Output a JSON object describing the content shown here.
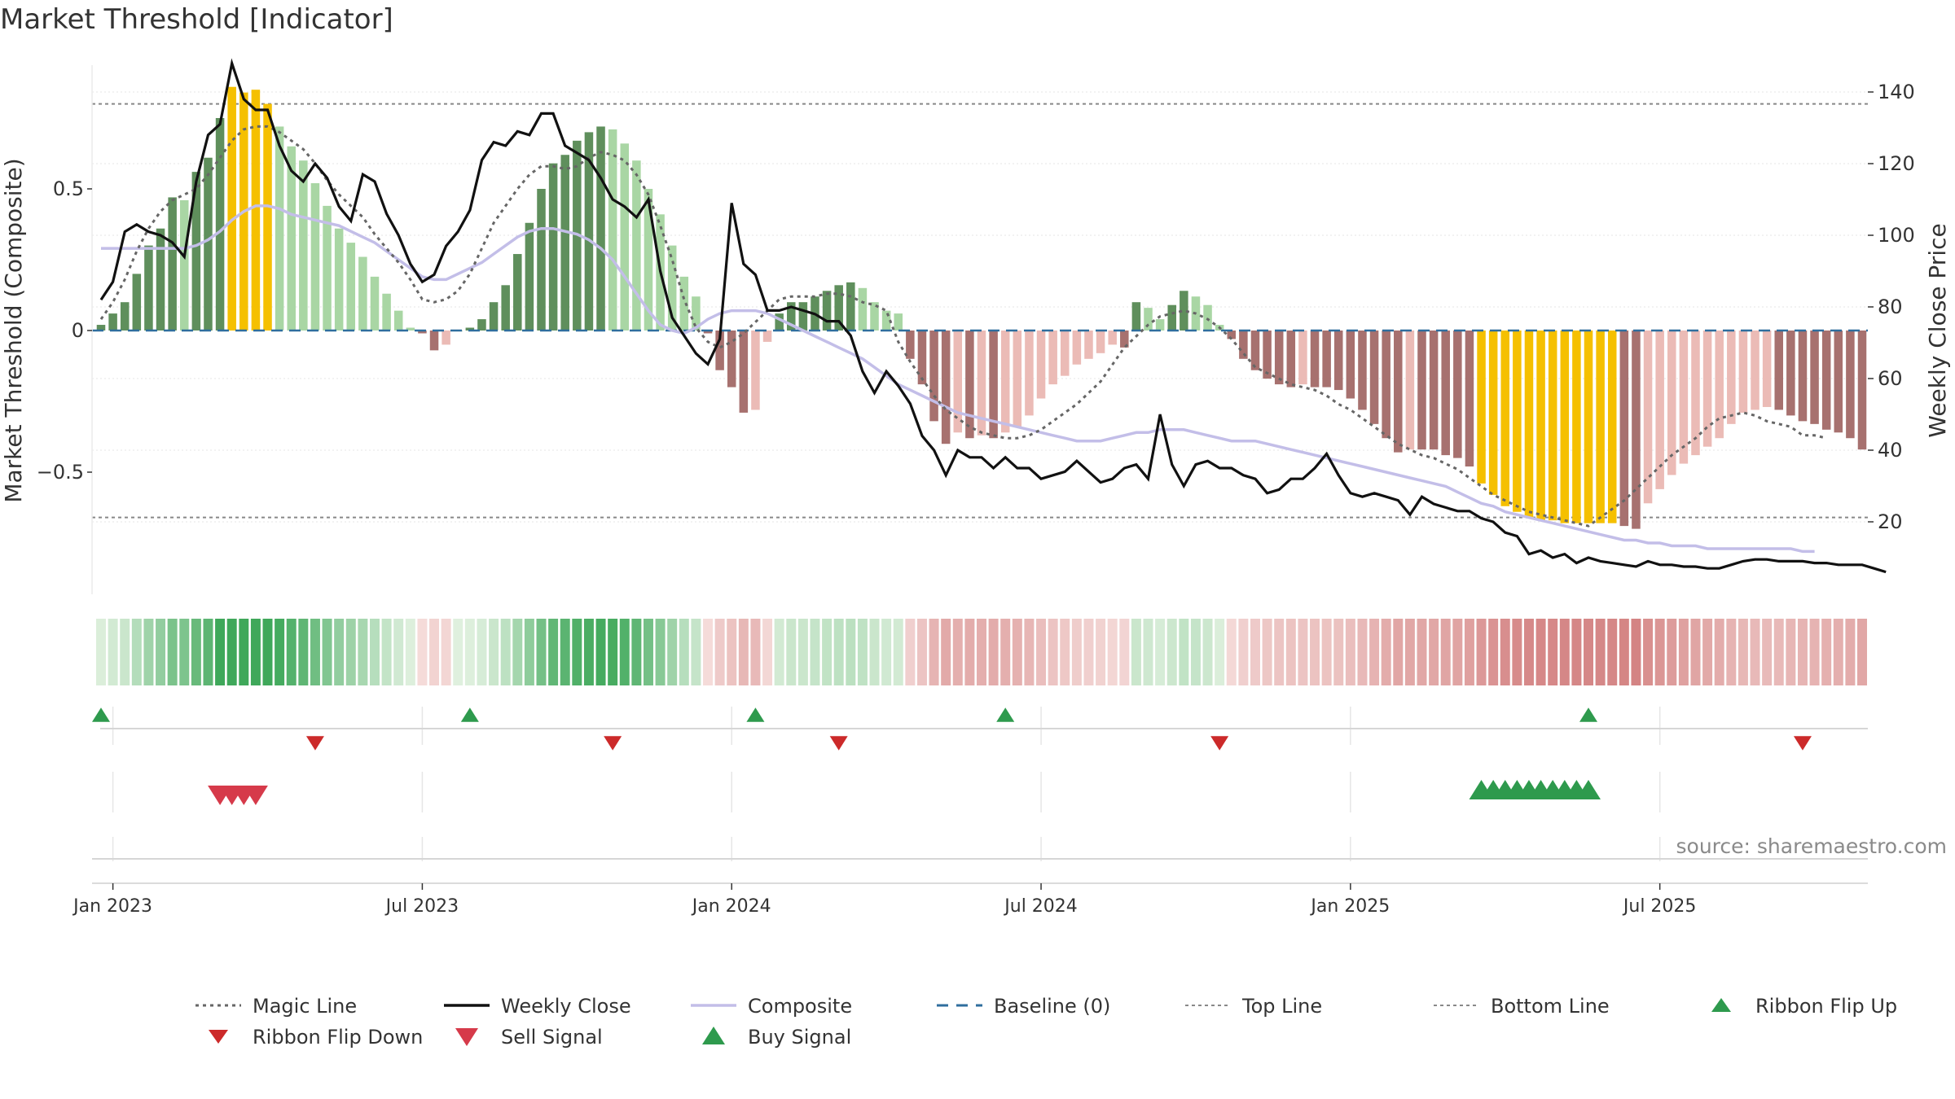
{
  "title": "Market Threshold [Indicator]",
  "source": "source: sharemaestro.com",
  "colors": {
    "dark_green": "#5f8f5c",
    "light_green": "#a9d6a4",
    "dark_red": "#a7716f",
    "light_red": "#ebbbb6",
    "gold": "#f5c000",
    "close": "#111111",
    "composite": "#c3bee8",
    "magic": "#666666",
    "baseline": "#2f6e9e",
    "threshold": "#888888",
    "buy": "#2e9a4d",
    "sell": "#d63a4a",
    "flip_down": "#cc2a2a"
  },
  "chart_data": {
    "type": "bar+line",
    "title": "Market Threshold [Indicator]",
    "ylabel_left": "Market Threshold (Composite)",
    "ylabel_right": "Weekly Close Price",
    "y_left_ticks": [
      {
        "value": 0.5,
        "label": "0.5"
      },
      {
        "value": 0,
        "label": "0"
      },
      {
        "value": -0.5,
        "label": "−0.5"
      }
    ],
    "y_right_ticks": [
      {
        "value": 140,
        "label": "140"
      },
      {
        "value": 120,
        "label": "120"
      },
      {
        "value": 100,
        "label": "100"
      },
      {
        "value": 80,
        "label": "80"
      },
      {
        "value": 60,
        "label": "60"
      },
      {
        "value": 40,
        "label": "40"
      },
      {
        "value": 20,
        "label": "20"
      }
    ],
    "x_ticks": [
      {
        "week": 1,
        "label": "Jan 2023"
      },
      {
        "week": 27,
        "label": "Jul 2023"
      },
      {
        "week": 53,
        "label": "Jan 2024"
      },
      {
        "week": 79,
        "label": "Jul 2024"
      },
      {
        "week": 105,
        "label": "Jan 2025"
      },
      {
        "week": 131,
        "label": "Jul 2025"
      }
    ],
    "top_line": 0.8,
    "bottom_line": -0.66,
    "composite_bars": [
      0.02,
      0.06,
      0.1,
      0.2,
      0.3,
      0.36,
      0.47,
      0.46,
      0.56,
      0.61,
      0.75,
      0.86,
      0.84,
      0.85,
      0.8,
      0.72,
      0.65,
      0.6,
      0.52,
      0.44,
      0.36,
      0.31,
      0.26,
      0.19,
      0.13,
      0.07,
      0.01,
      -0.01,
      -0.07,
      -0.05,
      0,
      0.01,
      0.04,
      0.1,
      0.16,
      0.27,
      0.38,
      0.5,
      0.59,
      0.62,
      0.67,
      0.7,
      0.72,
      0.71,
      0.66,
      0.6,
      0.5,
      0.41,
      0.3,
      0.19,
      0.12,
      -0.01,
      -0.14,
      -0.2,
      -0.29,
      -0.28,
      -0.04,
      0.06,
      0.1,
      0.1,
      0.12,
      0.14,
      0.16,
      0.17,
      0.15,
      0.1,
      0.07,
      0.06,
      -0.1,
      -0.19,
      -0.32,
      -0.4,
      -0.36,
      -0.38,
      -0.37,
      -0.38,
      -0.36,
      -0.34,
      -0.3,
      -0.24,
      -0.19,
      -0.16,
      -0.12,
      -0.1,
      -0.08,
      -0.05,
      -0.06,
      0.1,
      0.08,
      0.04,
      0.09,
      0.14,
      0.12,
      0.09,
      0.02,
      -0.03,
      -0.1,
      -0.14,
      -0.17,
      -0.19,
      -0.2,
      -0.19,
      -0.2,
      -0.2,
      -0.21,
      -0.24,
      -0.28,
      -0.33,
      -0.38,
      -0.43,
      -0.42,
      -0.42,
      -0.42,
      -0.44,
      -0.45,
      -0.48,
      -0.54,
      -0.58,
      -0.62,
      -0.64,
      -0.66,
      -0.67,
      -0.67,
      -0.68,
      -0.68,
      -0.68,
      -0.68,
      -0.68,
      -0.69,
      -0.7,
      -0.61,
      -0.56,
      -0.51,
      -0.47,
      -0.44,
      -0.41,
      -0.38,
      -0.33,
      -0.29,
      -0.28,
      -0.27,
      -0.28,
      -0.3,
      -0.32,
      -0.33,
      -0.35,
      -0.36,
      -0.38,
      -0.42
    ],
    "gold_bars": [
      11,
      12,
      13,
      14,
      116,
      117,
      118,
      119,
      120,
      121,
      122,
      123,
      124,
      125,
      126,
      127
    ],
    "weekly_close": [
      82,
      87,
      101,
      103,
      101,
      100,
      98,
      94,
      115,
      128,
      131,
      148,
      138,
      135,
      135,
      125,
      118,
      115,
      120,
      116,
      108,
      104,
      117,
      115,
      106,
      100,
      92,
      87,
      89,
      97,
      101,
      107,
      121,
      126,
      125,
      129,
      128,
      134,
      134,
      125,
      123,
      121,
      116,
      110,
      108,
      105,
      110,
      90,
      77,
      72,
      67,
      64,
      71,
      109,
      92,
      89,
      79,
      79,
      80,
      79,
      78,
      76,
      76,
      72,
      62,
      56,
      62,
      58,
      53,
      44,
      40,
      33,
      40,
      38,
      38,
      35,
      38,
      35,
      35,
      32,
      33,
      34,
      37,
      34,
      31,
      32,
      35,
      36,
      32,
      50,
      36,
      30,
      36,
      37,
      35,
      35,
      33,
      32,
      28,
      29,
      32,
      32,
      35,
      39,
      33,
      28,
      27,
      28,
      27,
      26,
      22,
      27,
      25,
      24,
      23,
      23,
      21,
      20,
      17,
      16,
      11,
      12,
      10,
      11,
      8.5,
      10,
      9,
      8.5,
      8,
      7.5,
      9,
      8,
      8,
      7.5,
      7.5,
      7,
      7,
      8,
      9,
      9.5,
      9.5,
      9,
      9,
      9,
      8.5,
      8.5,
      8,
      8,
      8,
      7,
      6
    ],
    "composite_line": [
      0.29,
      0.29,
      0.29,
      0.29,
      0.29,
      0.29,
      0.29,
      0.29,
      0.3,
      0.32,
      0.35,
      0.39,
      0.42,
      0.44,
      0.44,
      0.43,
      0.41,
      0.4,
      0.39,
      0.38,
      0.37,
      0.35,
      0.33,
      0.31,
      0.28,
      0.25,
      0.22,
      0.19,
      0.18,
      0.18,
      0.2,
      0.22,
      0.24,
      0.27,
      0.3,
      0.33,
      0.35,
      0.36,
      0.36,
      0.35,
      0.34,
      0.32,
      0.29,
      0.25,
      0.19,
      0.13,
      0.07,
      0.02,
      0,
      -0.01,
      0.01,
      0.04,
      0.06,
      0.07,
      0.07,
      0.07,
      0.06,
      0.04,
      0.02,
      0,
      -0.02,
      -0.04,
      -0.06,
      -0.08,
      -0.1,
      -0.13,
      -0.16,
      -0.19,
      -0.21,
      -0.23,
      -0.25,
      -0.27,
      -0.29,
      -0.3,
      -0.31,
      -0.32,
      -0.33,
      -0.34,
      -0.35,
      -0.36,
      -0.37,
      -0.38,
      -0.39,
      -0.39,
      -0.39,
      -0.38,
      -0.37,
      -0.36,
      -0.36,
      -0.35,
      -0.35,
      -0.35,
      -0.36,
      -0.37,
      -0.38,
      -0.39,
      -0.39,
      -0.39,
      -0.4,
      -0.41,
      -0.42,
      -0.43,
      -0.44,
      -0.45,
      -0.46,
      -0.47,
      -0.48,
      -0.49,
      -0.5,
      -0.51,
      -0.52,
      -0.53,
      -0.54,
      -0.55,
      -0.57,
      -0.59,
      -0.61,
      -0.62,
      -0.64,
      -0.65,
      -0.66,
      -0.67,
      -0.68,
      -0.69,
      -0.7,
      -0.71,
      -0.72,
      -0.73,
      -0.74,
      -0.74,
      -0.75,
      -0.75,
      -0.76,
      -0.76,
      -0.76,
      -0.77,
      -0.77,
      -0.77,
      -0.77,
      -0.77,
      -0.77,
      -0.77,
      -0.77,
      -0.78,
      -0.78
    ],
    "magic_line": [
      0.04,
      0.1,
      0.18,
      0.28,
      0.36,
      0.42,
      0.46,
      0.48,
      0.5,
      0.55,
      0.61,
      0.67,
      0.71,
      0.72,
      0.72,
      0.7,
      0.67,
      0.64,
      0.59,
      0.53,
      0.48,
      0.44,
      0.4,
      0.34,
      0.29,
      0.24,
      0.18,
      0.11,
      0.1,
      0.11,
      0.14,
      0.2,
      0.29,
      0.38,
      0.44,
      0.5,
      0.55,
      0.58,
      0.58,
      0.57,
      0.58,
      0.61,
      0.63,
      0.62,
      0.6,
      0.55,
      0.48,
      0.37,
      0.25,
      0.11,
      0.01,
      -0.04,
      -0.06,
      -0.04,
      -0.01,
      0.03,
      0.07,
      0.11,
      0.12,
      0.12,
      0.12,
      0.13,
      0.13,
      0.12,
      0.1,
      0.09,
      0.07,
      -0.04,
      -0.11,
      -0.17,
      -0.23,
      -0.28,
      -0.31,
      -0.34,
      -0.36,
      -0.37,
      -0.38,
      -0.38,
      -0.37,
      -0.35,
      -0.32,
      -0.29,
      -0.26,
      -0.22,
      -0.18,
      -0.12,
      -0.06,
      -0.02,
      0.02,
      0.05,
      0.06,
      0.07,
      0.06,
      0.04,
      0.01,
      -0.03,
      -0.08,
      -0.13,
      -0.15,
      -0.17,
      -0.19,
      -0.2,
      -0.21,
      -0.23,
      -0.26,
      -0.28,
      -0.31,
      -0.34,
      -0.37,
      -0.4,
      -0.42,
      -0.44,
      -0.45,
      -0.47,
      -0.49,
      -0.52,
      -0.55,
      -0.58,
      -0.6,
      -0.62,
      -0.64,
      -0.65,
      -0.66,
      -0.67,
      -0.68,
      -0.69,
      -0.66,
      -0.63,
      -0.6,
      -0.56,
      -0.52,
      -0.48,
      -0.44,
      -0.41,
      -0.38,
      -0.34,
      -0.31,
      -0.3,
      -0.29,
      -0.3,
      -0.32,
      -0.33,
      -0.34,
      -0.37,
      -0.37,
      -0.38
    ],
    "ribbon_flip_up_weeks": [
      0,
      31,
      55,
      76,
      125
    ],
    "ribbon_flip_down_weeks": [
      18,
      43,
      62,
      94,
      143
    ],
    "sell_signal_weeks": [
      10,
      11,
      12,
      13
    ],
    "buy_signal_weeks": [
      116,
      117,
      118,
      119,
      120,
      121,
      122,
      123,
      124,
      125
    ],
    "legend": [
      {
        "key": "magic",
        "label": "Magic Line"
      },
      {
        "key": "close",
        "label": "Weekly Close"
      },
      {
        "key": "composite",
        "label": "Composite"
      },
      {
        "key": "baseline",
        "label": "Baseline (0)"
      },
      {
        "key": "top",
        "label": "Top Line"
      },
      {
        "key": "bottom",
        "label": "Bottom Line"
      },
      {
        "key": "flip_up",
        "label": "Ribbon Flip Up"
      },
      {
        "key": "flip_down",
        "label": "Ribbon Flip Down"
      },
      {
        "key": "sell",
        "label": "Sell Signal"
      },
      {
        "key": "buy",
        "label": "Buy Signal"
      }
    ],
    "legend_placement": "bottom"
  }
}
